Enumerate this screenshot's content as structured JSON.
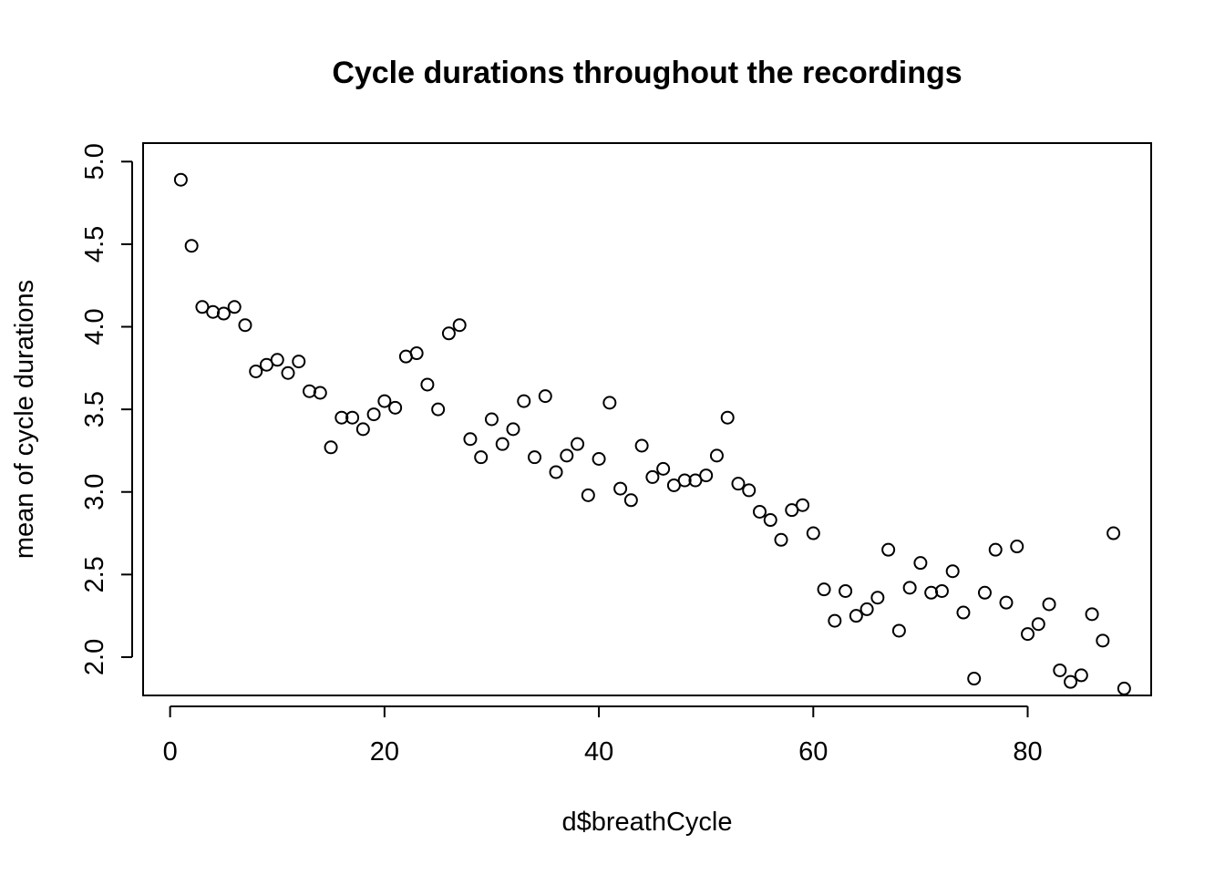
{
  "chart_data": {
    "type": "scatter",
    "title": "Cycle durations throughout the recordings",
    "xlabel": "d$breathCycle",
    "ylabel": "mean of cycle durations",
    "xlim": [
      -2.52,
      91.52
    ],
    "ylim": [
      1.768,
      5.112
    ],
    "xticks": [
      0,
      20,
      40,
      60,
      80
    ],
    "xtick_labels": [
      "0",
      "20",
      "40",
      "60",
      "80"
    ],
    "yticks": [
      2.0,
      2.5,
      3.0,
      3.5,
      4.0,
      4.5,
      5.0
    ],
    "ytick_labels": [
      "2.0",
      "2.5",
      "3.0",
      "3.5",
      "4.0",
      "4.5",
      "5.0"
    ],
    "grid": false,
    "legend": "none",
    "x": [
      1,
      2,
      3,
      4,
      5,
      6,
      7,
      8,
      9,
      10,
      11,
      12,
      13,
      14,
      15,
      16,
      17,
      18,
      19,
      20,
      21,
      22,
      23,
      24,
      25,
      26,
      27,
      28,
      29,
      30,
      31,
      32,
      33,
      34,
      35,
      36,
      37,
      38,
      39,
      40,
      41,
      42,
      43,
      44,
      45,
      46,
      47,
      48,
      49,
      50,
      51,
      52,
      53,
      54,
      55,
      56,
      57,
      58,
      59,
      60,
      61,
      62,
      63,
      64,
      65,
      66,
      67,
      68,
      69,
      70,
      71,
      72,
      73,
      74,
      75,
      76,
      77,
      78,
      79,
      80,
      81,
      82,
      83,
      84,
      85,
      86,
      87,
      88,
      89
    ],
    "y": [
      4.89,
      4.49,
      4.12,
      4.09,
      4.08,
      4.12,
      4.01,
      3.73,
      3.77,
      3.8,
      3.72,
      3.79,
      3.61,
      3.6,
      3.27,
      3.45,
      3.45,
      3.38,
      3.47,
      3.55,
      3.51,
      3.82,
      3.84,
      3.65,
      3.5,
      3.96,
      4.01,
      3.32,
      3.21,
      3.44,
      3.29,
      3.38,
      3.55,
      3.21,
      3.58,
      3.12,
      3.22,
      3.29,
      2.98,
      3.2,
      3.54,
      3.02,
      2.95,
      3.28,
      3.09,
      3.14,
      3.04,
      3.07,
      3.07,
      3.1,
      3.22,
      3.45,
      3.05,
      3.01,
      2.88,
      2.83,
      2.71,
      2.89,
      2.92,
      2.75,
      2.41,
      2.22,
      2.4,
      2.25,
      2.29,
      2.36,
      2.65,
      2.16,
      2.42,
      2.57,
      2.39,
      2.4,
      2.52,
      2.27,
      1.87,
      2.39,
      2.65,
      2.33,
      2.67,
      2.14,
      2.2,
      2.32,
      1.92,
      1.85,
      1.89,
      2.26,
      2.1,
      2.75,
      1.81
    ]
  }
}
